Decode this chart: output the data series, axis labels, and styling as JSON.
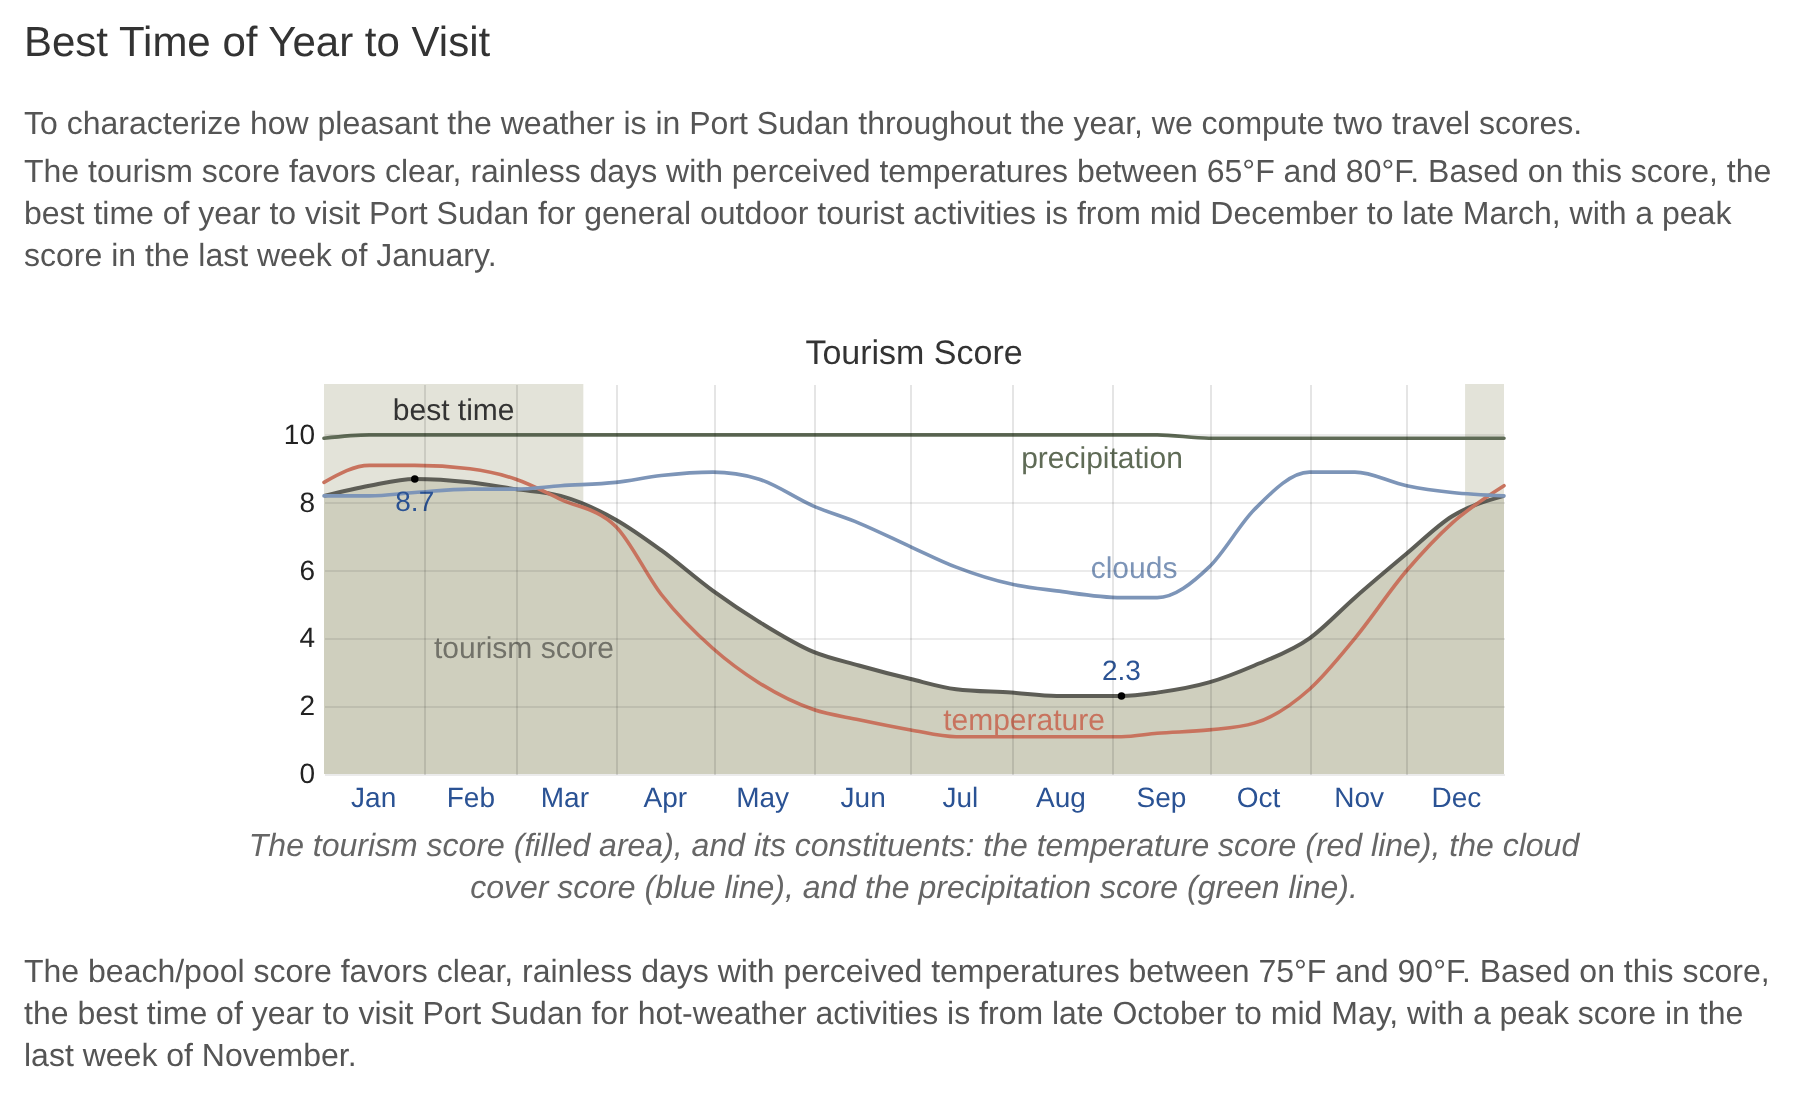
{
  "chart_data": {
    "type": "line",
    "title": "Tourism Score",
    "x": [
      "--01-01",
      "--01-15",
      "--01-29",
      "--02-15",
      "--03-01",
      "--03-15",
      "--04-01",
      "--04-15",
      "--05-01",
      "--05-15",
      "--06-01",
      "--06-15",
      "--07-01",
      "--07-15",
      "--08-01",
      "--08-15",
      "--09-04",
      "--09-15",
      "--10-01",
      "--10-15",
      "--11-01",
      "--11-15",
      "--12-01",
      "--12-15",
      "--12-31"
    ],
    "xlim": [
      "--01-01",
      "--12-31"
    ],
    "xticks": [
      {
        "value": "--01-16",
        "label": "Jan"
      },
      {
        "value": "--02-01",
        "label": null
      },
      {
        "value": "--02-15",
        "label": "Feb"
      },
      {
        "value": "--03-01",
        "label": null
      },
      {
        "value": "--03-16",
        "label": "Mar"
      },
      {
        "value": "--04-01",
        "label": null
      },
      {
        "value": "--04-16",
        "label": "Apr"
      },
      {
        "value": "--05-01",
        "label": null
      },
      {
        "value": "--05-16",
        "label": "May"
      },
      {
        "value": "--06-01",
        "label": null
      },
      {
        "value": "--06-16",
        "label": "Jun"
      },
      {
        "value": "--07-01",
        "label": null
      },
      {
        "value": "--07-16",
        "label": "Jul"
      },
      {
        "value": "--08-01",
        "label": null
      },
      {
        "value": "--08-16",
        "label": "Aug"
      },
      {
        "value": "--09-01",
        "label": null
      },
      {
        "value": "--09-16",
        "label": "Sep"
      },
      {
        "value": "--10-01",
        "label": null
      },
      {
        "value": "--10-16",
        "label": "Oct"
      },
      {
        "value": "--11-01",
        "label": null
      },
      {
        "value": "--11-16",
        "label": "Nov"
      },
      {
        "value": "--12-01",
        "label": null
      },
      {
        "value": "--12-16",
        "label": "Dec"
      }
    ],
    "ylim": [
      0,
      11.5
    ],
    "yticks": [
      0,
      2,
      4,
      6,
      8,
      10
    ],
    "grid": true,
    "legend": false,
    "series": [
      {
        "name": "tourism score",
        "type": "area",
        "color": "#cfcfbe",
        "values": [
          8.2,
          8.5,
          8.7,
          8.6,
          8.4,
          8.2,
          7.5,
          6.6,
          5.4,
          4.5,
          3.6,
          3.2,
          2.8,
          2.5,
          2.4,
          2.3,
          2.3,
          2.4,
          2.7,
          3.2,
          4.0,
          5.2,
          6.5,
          7.6,
          8.2
        ]
      },
      {
        "name": "temperature",
        "color": "#c8735e",
        "values": [
          8.6,
          9.1,
          9.1,
          9.0,
          8.7,
          8.1,
          7.3,
          5.3,
          3.7,
          2.7,
          1.9,
          1.6,
          1.3,
          1.1,
          1.1,
          1.1,
          1.1,
          1.2,
          1.3,
          1.5,
          2.5,
          4.0,
          6.0,
          7.4,
          8.5
        ]
      },
      {
        "name": "clouds",
        "color": "#7d95b8",
        "values": [
          8.2,
          8.2,
          8.3,
          8.4,
          8.4,
          8.5,
          8.6,
          8.8,
          8.9,
          8.7,
          7.9,
          7.4,
          6.7,
          6.1,
          5.6,
          5.4,
          5.2,
          5.2,
          6.1,
          7.8,
          8.9,
          8.9,
          8.5,
          8.3,
          8.2
        ]
      },
      {
        "name": "precipitation",
        "color": "#5f6b56",
        "values": [
          9.9,
          10,
          10,
          10,
          10,
          10,
          10,
          10,
          10,
          10,
          10,
          10,
          10,
          10,
          10,
          10,
          10,
          10,
          9.9,
          9.9,
          9.9,
          9.9,
          9.9,
          9.9,
          9.9
        ]
      }
    ],
    "bands": [
      {
        "axis": "x",
        "from": "--01-01",
        "to": "--03-22",
        "label": "best time",
        "color": "#e3e3d9"
      },
      {
        "axis": "x",
        "from": "--12-19",
        "to": "--12-31",
        "color": "#e3e3d9"
      }
    ],
    "annotations": [
      "Best Time of Year to Visit",
      "To characterize how pleasant the weather is in Port Sudan throughout the year, we compute two travel scores.",
      "The tourism score favors clear, rainless days with perceived temperatures between 65°F and 80°F. Based on this score, the best time of year to visit Port Sudan for general outdoor tourist activities is from mid December to late March, with a peak score in the last week of January.",
      "The tourism score (filled area), and its constituents: the temperature score (red line), the cloud cover score (blue line), and the precipitation score (green line).",
      "The beach/pool score favors clear, rainless days with perceived temperatures between 75°F and 90°F. Based on this score, the best time of year to visit Port Sudan for hot-weather activities is from late October to mid May, with a peak score in the last week of November.",
      {
        "text": "8.7",
        "x": "--01-29",
        "y": 8.7
      },
      {
        "text": "2.3",
        "x": "--09-04",
        "y": 2.3
      }
    ]
  }
}
